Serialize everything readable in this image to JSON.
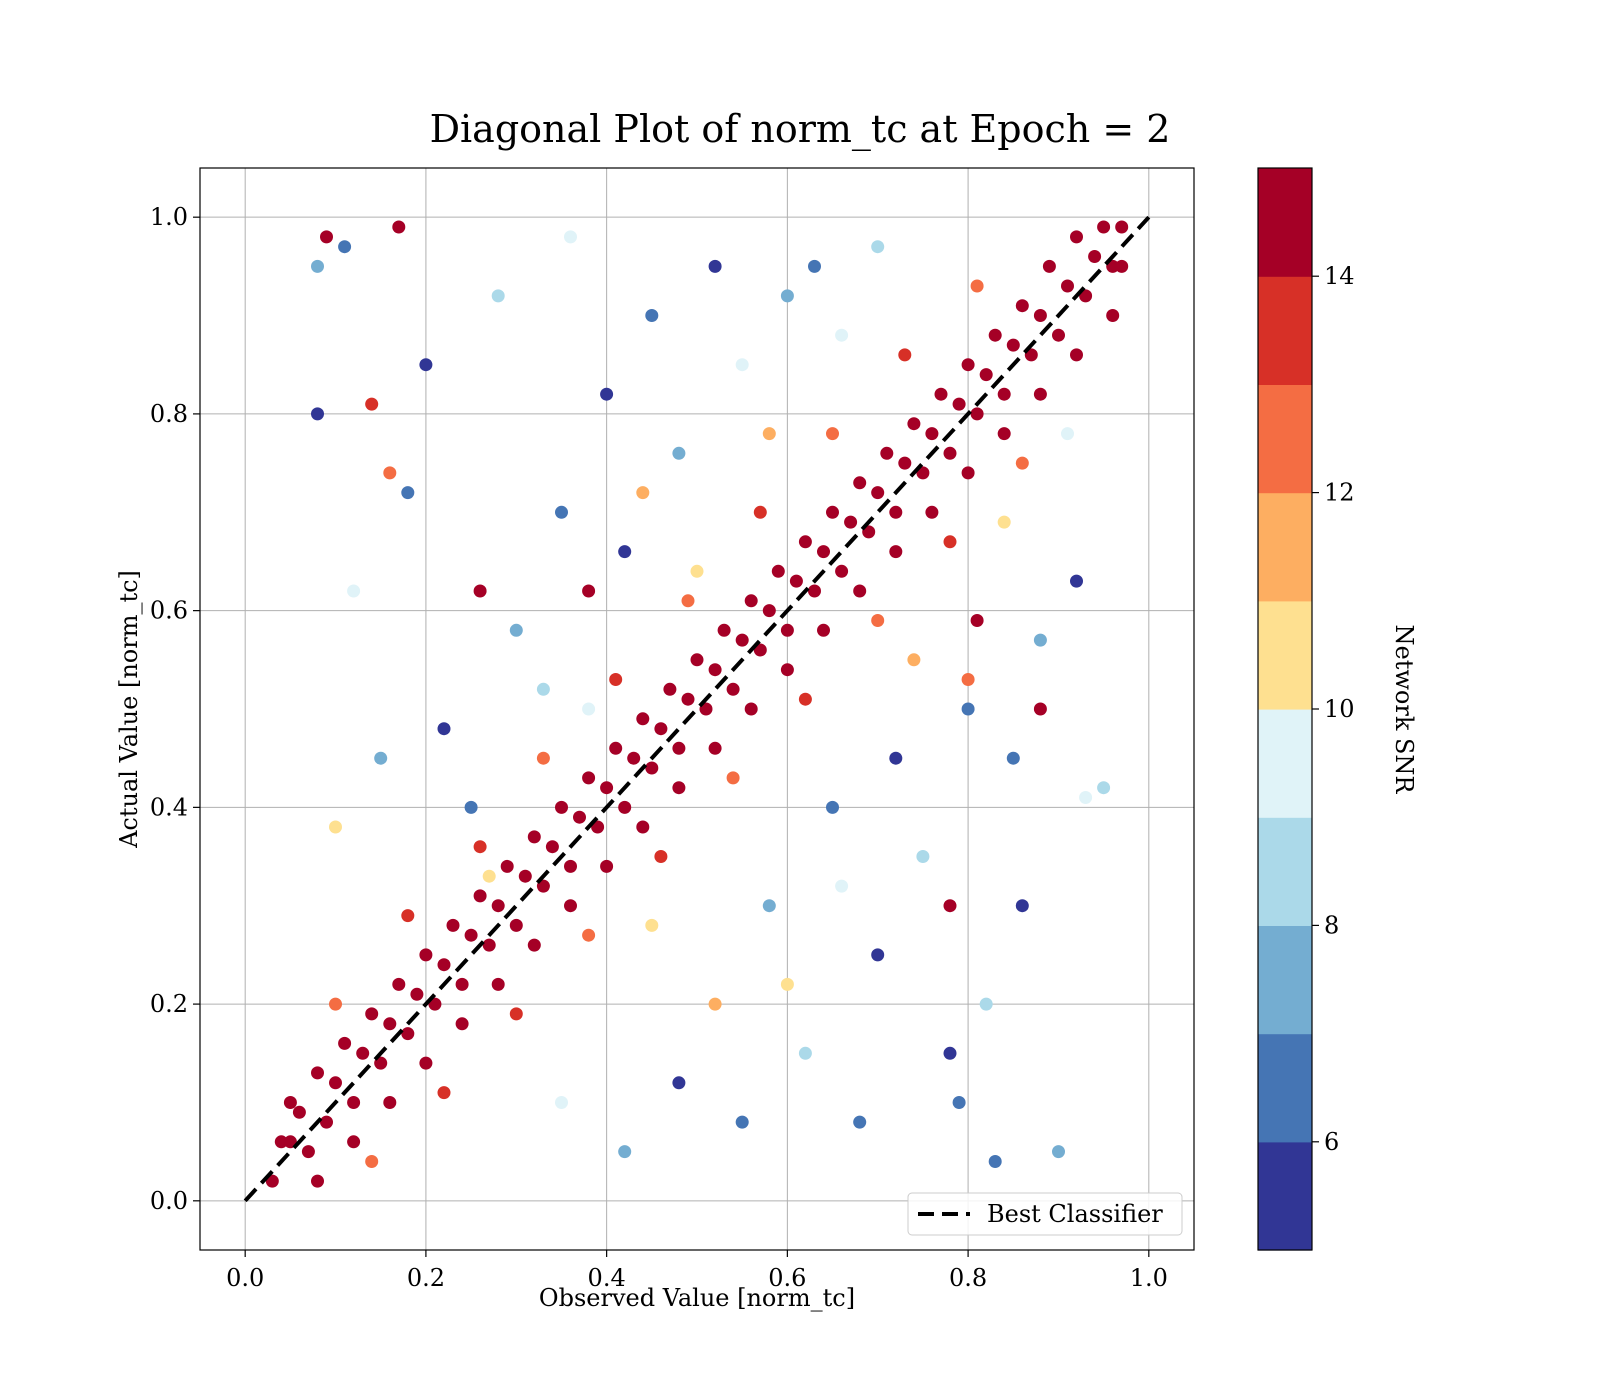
{
  "chart_data": {
    "type": "scatter",
    "title": "Diagonal Plot of norm_tc at Epoch = 2",
    "xlabel": "Observed Value [norm_tc]",
    "ylabel": "Actual Value [norm_tc]",
    "xlim": [
      -0.05,
      1.05
    ],
    "ylim": [
      -0.05,
      1.05
    ],
    "xticks": [
      0.0,
      0.2,
      0.4,
      0.6,
      0.8,
      1.0
    ],
    "yticks": [
      0.0,
      0.2,
      0.4,
      0.6,
      0.8,
      1.0
    ],
    "xtick_labels": [
      "0.0",
      "0.2",
      "0.4",
      "0.6",
      "0.8",
      "1.0"
    ],
    "ytick_labels": [
      "0.0",
      "0.2",
      "0.4",
      "0.6",
      "0.8",
      "1.0"
    ],
    "grid": true,
    "legend": {
      "position": "lower-right",
      "entries": [
        "Best Classifier"
      ]
    },
    "reference_line": {
      "name": "Best Classifier",
      "x": [
        0.0,
        1.0
      ],
      "y": [
        0.0,
        1.0
      ],
      "style": "dashed",
      "color": "#000000"
    },
    "colorbar": {
      "label": "Network SNR",
      "range": [
        5,
        15
      ],
      "ticks": [
        6,
        8,
        10,
        12,
        14
      ],
      "tick_labels": [
        "6",
        "8",
        "10",
        "12",
        "14"
      ],
      "colors": [
        "#313695",
        "#4575b4",
        "#74add1",
        "#abd9e9",
        "#e0f3f8",
        "#fee090",
        "#fdae61",
        "#f46d43",
        "#d73027",
        "#a50026"
      ]
    },
    "points": [
      [
        0.03,
        0.02,
        15
      ],
      [
        0.05,
        0.06,
        15
      ],
      [
        0.07,
        0.05,
        14
      ],
      [
        0.06,
        0.09,
        15
      ],
      [
        0.09,
        0.08,
        15
      ],
      [
        0.1,
        0.12,
        15
      ],
      [
        0.12,
        0.1,
        14
      ],
      [
        0.13,
        0.15,
        15
      ],
      [
        0.15,
        0.14,
        15
      ],
      [
        0.16,
        0.18,
        15
      ],
      [
        0.18,
        0.17,
        14
      ],
      [
        0.19,
        0.21,
        15
      ],
      [
        0.21,
        0.2,
        15
      ],
      [
        0.22,
        0.24,
        15
      ],
      [
        0.24,
        0.22,
        14
      ],
      [
        0.25,
        0.27,
        15
      ],
      [
        0.27,
        0.26,
        15
      ],
      [
        0.28,
        0.3,
        15
      ],
      [
        0.3,
        0.28,
        14
      ],
      [
        0.31,
        0.33,
        15
      ],
      [
        0.33,
        0.32,
        15
      ],
      [
        0.34,
        0.36,
        15
      ],
      [
        0.36,
        0.34,
        14
      ],
      [
        0.37,
        0.39,
        15
      ],
      [
        0.39,
        0.38,
        15
      ],
      [
        0.4,
        0.42,
        15
      ],
      [
        0.42,
        0.4,
        14
      ],
      [
        0.43,
        0.45,
        15
      ],
      [
        0.45,
        0.44,
        15
      ],
      [
        0.46,
        0.48,
        15
      ],
      [
        0.48,
        0.46,
        14
      ],
      [
        0.49,
        0.51,
        15
      ],
      [
        0.51,
        0.5,
        15
      ],
      [
        0.52,
        0.54,
        15
      ],
      [
        0.54,
        0.52,
        14
      ],
      [
        0.55,
        0.57,
        15
      ],
      [
        0.57,
        0.56,
        15
      ],
      [
        0.58,
        0.6,
        15
      ],
      [
        0.6,
        0.58,
        14
      ],
      [
        0.61,
        0.63,
        15
      ],
      [
        0.63,
        0.62,
        15
      ],
      [
        0.64,
        0.66,
        15
      ],
      [
        0.66,
        0.64,
        14
      ],
      [
        0.67,
        0.69,
        15
      ],
      [
        0.69,
        0.68,
        15
      ],
      [
        0.7,
        0.72,
        15
      ],
      [
        0.72,
        0.7,
        14
      ],
      [
        0.73,
        0.75,
        15
      ],
      [
        0.75,
        0.74,
        15
      ],
      [
        0.76,
        0.78,
        15
      ],
      [
        0.78,
        0.76,
        14
      ],
      [
        0.79,
        0.81,
        15
      ],
      [
        0.81,
        0.8,
        15
      ],
      [
        0.82,
        0.84,
        15
      ],
      [
        0.84,
        0.82,
        14
      ],
      [
        0.85,
        0.87,
        15
      ],
      [
        0.87,
        0.86,
        15
      ],
      [
        0.88,
        0.9,
        15
      ],
      [
        0.9,
        0.88,
        14
      ],
      [
        0.91,
        0.93,
        15
      ],
      [
        0.93,
        0.92,
        15
      ],
      [
        0.94,
        0.96,
        15
      ],
      [
        0.96,
        0.95,
        14
      ],
      [
        0.97,
        0.99,
        15
      ],
      [
        0.95,
        0.99,
        15
      ],
      [
        0.92,
        0.98,
        15
      ],
      [
        0.89,
        0.95,
        14
      ],
      [
        0.86,
        0.91,
        15
      ],
      [
        0.83,
        0.88,
        15
      ],
      [
        0.8,
        0.85,
        15
      ],
      [
        0.77,
        0.82,
        14
      ],
      [
        0.74,
        0.79,
        15
      ],
      [
        0.71,
        0.76,
        15
      ],
      [
        0.68,
        0.73,
        15
      ],
      [
        0.65,
        0.7,
        14
      ],
      [
        0.62,
        0.67,
        15
      ],
      [
        0.59,
        0.64,
        15
      ],
      [
        0.56,
        0.61,
        15
      ],
      [
        0.53,
        0.58,
        14
      ],
      [
        0.5,
        0.55,
        15
      ],
      [
        0.47,
        0.52,
        15
      ],
      [
        0.44,
        0.49,
        15
      ],
      [
        0.41,
        0.46,
        14
      ],
      [
        0.38,
        0.43,
        15
      ],
      [
        0.35,
        0.4,
        15
      ],
      [
        0.32,
        0.37,
        15
      ],
      [
        0.29,
        0.34,
        14
      ],
      [
        0.26,
        0.31,
        15
      ],
      [
        0.23,
        0.28,
        15
      ],
      [
        0.2,
        0.25,
        15
      ],
      [
        0.17,
        0.22,
        14
      ],
      [
        0.14,
        0.19,
        15
      ],
      [
        0.11,
        0.16,
        15
      ],
      [
        0.08,
        0.13,
        15
      ],
      [
        0.05,
        0.1,
        14
      ],
      [
        0.04,
        0.06,
        15
      ],
      [
        0.08,
        0.02,
        15
      ],
      [
        0.12,
        0.06,
        14
      ],
      [
        0.16,
        0.1,
        15
      ],
      [
        0.2,
        0.14,
        15
      ],
      [
        0.24,
        0.18,
        14
      ],
      [
        0.28,
        0.22,
        15
      ],
      [
        0.32,
        0.26,
        15
      ],
      [
        0.36,
        0.3,
        14
      ],
      [
        0.4,
        0.34,
        15
      ],
      [
        0.44,
        0.38,
        15
      ],
      [
        0.48,
        0.42,
        14
      ],
      [
        0.52,
        0.46,
        15
      ],
      [
        0.56,
        0.5,
        15
      ],
      [
        0.6,
        0.54,
        14
      ],
      [
        0.64,
        0.58,
        15
      ],
      [
        0.68,
        0.62,
        15
      ],
      [
        0.72,
        0.66,
        14
      ],
      [
        0.76,
        0.7,
        15
      ],
      [
        0.8,
        0.74,
        15
      ],
      [
        0.84,
        0.78,
        14
      ],
      [
        0.88,
        0.82,
        15
      ],
      [
        0.92,
        0.86,
        15
      ],
      [
        0.96,
        0.9,
        14
      ],
      [
        0.97,
        0.95,
        15
      ],
      [
        0.26,
        0.36,
        13
      ],
      [
        0.33,
        0.45,
        12
      ],
      [
        0.41,
        0.53,
        13
      ],
      [
        0.49,
        0.61,
        12
      ],
      [
        0.57,
        0.7,
        13
      ],
      [
        0.65,
        0.78,
        12
      ],
      [
        0.73,
        0.86,
        13
      ],
      [
        0.81,
        0.93,
        12
      ],
      [
        0.18,
        0.29,
        13
      ],
      [
        0.1,
        0.2,
        12
      ],
      [
        0.3,
        0.19,
        13
      ],
      [
        0.38,
        0.27,
        12
      ],
      [
        0.46,
        0.35,
        13
      ],
      [
        0.54,
        0.43,
        12
      ],
      [
        0.62,
        0.51,
        13
      ],
      [
        0.7,
        0.59,
        12
      ],
      [
        0.78,
        0.67,
        13
      ],
      [
        0.86,
        0.75,
        12
      ],
      [
        0.22,
        0.11,
        13
      ],
      [
        0.14,
        0.04,
        12
      ],
      [
        0.3,
        0.58,
        7
      ],
      [
        0.22,
        0.48,
        5
      ],
      [
        0.35,
        0.7,
        6
      ],
      [
        0.4,
        0.82,
        5
      ],
      [
        0.28,
        0.92,
        8
      ],
      [
        0.45,
        0.9,
        6
      ],
      [
        0.52,
        0.95,
        5
      ],
      [
        0.6,
        0.92,
        7
      ],
      [
        0.18,
        0.72,
        6
      ],
      [
        0.12,
        0.62,
        9
      ],
      [
        0.25,
        0.4,
        6
      ],
      [
        0.33,
        0.52,
        8
      ],
      [
        0.42,
        0.66,
        5
      ],
      [
        0.48,
        0.76,
        7
      ],
      [
        0.55,
        0.85,
        9
      ],
      [
        0.63,
        0.95,
        6
      ],
      [
        0.7,
        0.97,
        8
      ],
      [
        0.15,
        0.45,
        7
      ],
      [
        0.1,
        0.38,
        10
      ],
      [
        0.2,
        0.85,
        5
      ],
      [
        0.36,
        0.98,
        9
      ],
      [
        0.44,
        0.72,
        11
      ],
      [
        0.5,
        0.64,
        10
      ],
      [
        0.38,
        0.5,
        9
      ],
      [
        0.27,
        0.33,
        10
      ],
      [
        0.58,
        0.78,
        11
      ],
      [
        0.66,
        0.88,
        9
      ],
      [
        0.08,
        0.8,
        5
      ],
      [
        0.11,
        0.97,
        6
      ],
      [
        0.08,
        0.95,
        7
      ],
      [
        0.65,
        0.4,
        6
      ],
      [
        0.72,
        0.45,
        5
      ],
      [
        0.58,
        0.3,
        7
      ],
      [
        0.8,
        0.5,
        6
      ],
      [
        0.88,
        0.57,
        7
      ],
      [
        0.7,
        0.25,
        5
      ],
      [
        0.62,
        0.15,
        8
      ],
      [
        0.55,
        0.08,
        6
      ],
      [
        0.48,
        0.12,
        5
      ],
      [
        0.42,
        0.05,
        7
      ],
      [
        0.35,
        0.1,
        9
      ],
      [
        0.75,
        0.35,
        8
      ],
      [
        0.85,
        0.45,
        6
      ],
      [
        0.92,
        0.63,
        5
      ],
      [
        0.78,
        0.15,
        5
      ],
      [
        0.68,
        0.08,
        6
      ],
      [
        0.9,
        0.05,
        7
      ],
      [
        0.82,
        0.2,
        8
      ],
      [
        0.95,
        0.42,
        8
      ],
      [
        0.6,
        0.22,
        10
      ],
      [
        0.52,
        0.2,
        11
      ],
      [
        0.45,
        0.28,
        10
      ],
      [
        0.66,
        0.32,
        9
      ],
      [
        0.74,
        0.55,
        11
      ],
      [
        0.84,
        0.69,
        10
      ],
      [
        0.91,
        0.78,
        9
      ],
      [
        0.86,
        0.3,
        5
      ],
      [
        0.79,
        0.1,
        6
      ],
      [
        0.88,
        0.5,
        15
      ],
      [
        0.81,
        0.59,
        15
      ],
      [
        0.78,
        0.3,
        15
      ],
      [
        0.38,
        0.62,
        14
      ],
      [
        0.26,
        0.62,
        15
      ],
      [
        0.16,
        0.74,
        12
      ],
      [
        0.14,
        0.81,
        13
      ],
      [
        0.09,
        0.98,
        14
      ],
      [
        0.17,
        0.99,
        15
      ],
      [
        0.8,
        0.53,
        12
      ],
      [
        0.93,
        0.41,
        9
      ],
      [
        0.83,
        0.04,
        6
      ]
    ]
  }
}
